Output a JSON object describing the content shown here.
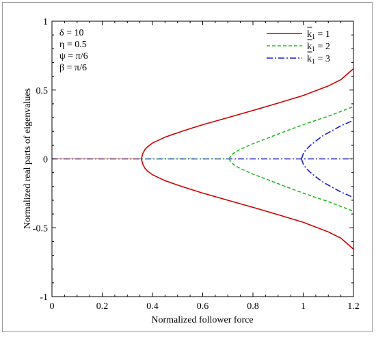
{
  "chart_data": {
    "type": "line",
    "xlabel": "Normalized follower force",
    "ylabel": "Normalized real parts of eigenvalues",
    "xlim": [
      0,
      1.2
    ],
    "ylim": [
      -1,
      1
    ],
    "x_ticks": [
      "0",
      "0.2",
      "0.4",
      "0.6",
      "0.8",
      "1",
      "1.2"
    ],
    "y_ticks": [
      "-1",
      "-0.5",
      "0",
      "0.5",
      "1"
    ],
    "annotations": [
      "δ = 10",
      "η = 0.5",
      "ψ = π/6",
      "β = π/6"
    ],
    "legend_position": "top-right",
    "legend": [
      {
        "prefix": "k",
        "subscript": "1",
        "suffix": " = 1",
        "color": "#cc0000",
        "dash": "solid"
      },
      {
        "prefix": "k",
        "subscript": "1",
        "suffix": " = 2",
        "color": "#22bb22",
        "dash": "dashed"
      },
      {
        "prefix": "k",
        "subscript": "1",
        "suffix": " = 3",
        "color": "#1a1acc",
        "dash": "dashdot"
      }
    ],
    "series": [
      {
        "color": "#cc0000",
        "dash": "solid",
        "upper": [
          [
            0.356,
            0
          ],
          [
            0.362,
            0.04
          ],
          [
            0.37,
            0.068
          ],
          [
            0.38,
            0.088
          ],
          [
            0.4,
            0.115
          ],
          [
            0.45,
            0.158
          ],
          [
            0.5,
            0.19
          ],
          [
            0.55,
            0.22
          ],
          [
            0.6,
            0.248
          ],
          [
            0.7,
            0.3
          ],
          [
            0.8,
            0.352
          ],
          [
            0.9,
            0.405
          ],
          [
            1.0,
            0.46
          ],
          [
            1.1,
            0.53
          ],
          [
            1.15,
            0.575
          ],
          [
            1.2,
            0.655
          ]
        ],
        "lower": [
          [
            0.356,
            0
          ],
          [
            0.362,
            -0.04
          ],
          [
            0.37,
            -0.068
          ],
          [
            0.38,
            -0.088
          ],
          [
            0.4,
            -0.115
          ],
          [
            0.45,
            -0.158
          ],
          [
            0.5,
            -0.19
          ],
          [
            0.55,
            -0.22
          ],
          [
            0.6,
            -0.248
          ],
          [
            0.7,
            -0.3
          ],
          [
            0.8,
            -0.352
          ],
          [
            0.9,
            -0.405
          ],
          [
            1.0,
            -0.46
          ],
          [
            1.1,
            -0.53
          ],
          [
            1.15,
            -0.575
          ],
          [
            1.2,
            -0.655
          ]
        ]
      },
      {
        "color": "#22bb22",
        "dash": "dashed",
        "upper": [
          [
            0.705,
            0
          ],
          [
            0.715,
            0.03
          ],
          [
            0.73,
            0.05
          ],
          [
            0.75,
            0.07
          ],
          [
            0.8,
            0.11
          ],
          [
            0.85,
            0.145
          ],
          [
            0.9,
            0.18
          ],
          [
            0.95,
            0.215
          ],
          [
            1.0,
            0.248
          ],
          [
            1.05,
            0.28
          ],
          [
            1.1,
            0.31
          ],
          [
            1.15,
            0.345
          ],
          [
            1.2,
            0.38
          ]
        ],
        "lower": [
          [
            0.705,
            0
          ],
          [
            0.715,
            -0.03
          ],
          [
            0.73,
            -0.05
          ],
          [
            0.75,
            -0.07
          ],
          [
            0.8,
            -0.11
          ],
          [
            0.85,
            -0.145
          ],
          [
            0.9,
            -0.18
          ],
          [
            0.95,
            -0.215
          ],
          [
            1.0,
            -0.248
          ],
          [
            1.05,
            -0.28
          ],
          [
            1.1,
            -0.31
          ],
          [
            1.15,
            -0.345
          ],
          [
            1.2,
            -0.38
          ]
        ]
      },
      {
        "color": "#1a1acc",
        "dash": "dashdot",
        "upper": [
          [
            0.993,
            0
          ],
          [
            1.0,
            0.035
          ],
          [
            1.01,
            0.065
          ],
          [
            1.03,
            0.1
          ],
          [
            1.05,
            0.13
          ],
          [
            1.08,
            0.17
          ],
          [
            1.1,
            0.19
          ],
          [
            1.15,
            0.24
          ],
          [
            1.2,
            0.28
          ]
        ],
        "lower": [
          [
            0.993,
            0
          ],
          [
            1.0,
            -0.035
          ],
          [
            1.01,
            -0.065
          ],
          [
            1.03,
            -0.1
          ],
          [
            1.05,
            -0.13
          ],
          [
            1.08,
            -0.17
          ],
          [
            1.1,
            -0.19
          ],
          [
            1.15,
            -0.24
          ],
          [
            1.2,
            -0.28
          ]
        ]
      }
    ],
    "zero_line": {
      "from": 0,
      "to": 1.2,
      "value": 0
    }
  }
}
